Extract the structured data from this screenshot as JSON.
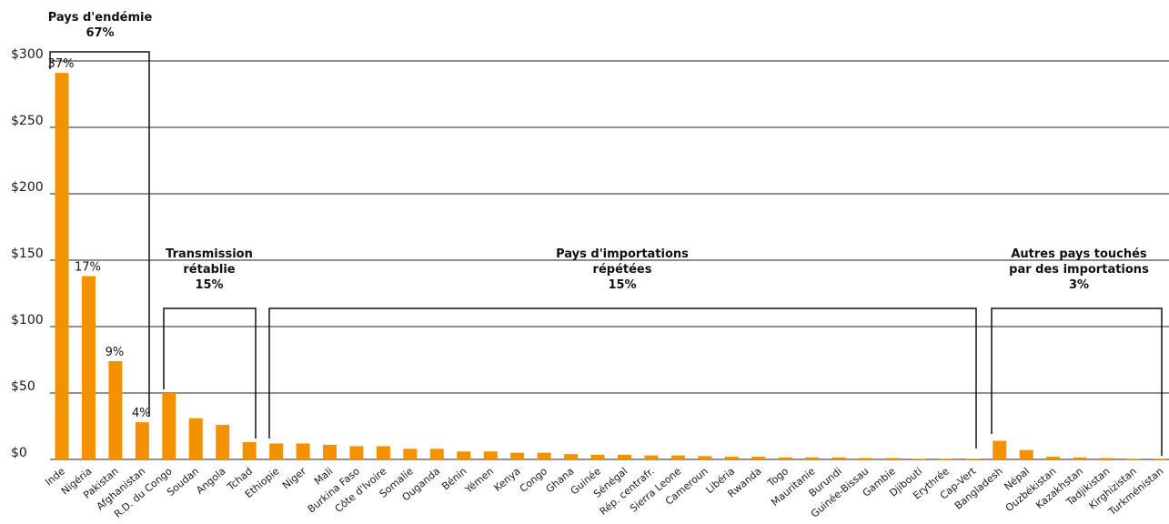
{
  "chart_data": {
    "type": "bar",
    "categories": [
      "Inde",
      "Nigéria",
      "Pakistan",
      "Afghanistan",
      "R.D. du Congo",
      "Soudan",
      "Angola",
      "Tchad",
      "Ethiopie",
      "Niger",
      "Mali",
      "Burkina Faso",
      "Côte d'Ivoire",
      "Somalie",
      "Ouganda",
      "Bénin",
      "Yémen",
      "Kenya",
      "Congo",
      "Ghana",
      "Guinée",
      "Sénégal",
      "Rép. centrafr.",
      "Sierra Leone",
      "Cameroun",
      "Libéria",
      "Rwanda",
      "Togo",
      "Mauritanie",
      "Burundi",
      "Guinée-Bissau",
      "Gambie",
      "Djibouti",
      "Erythrée",
      "Cap-Vert",
      "Bangladesh",
      "Népal",
      "Ouzbékistan",
      "Kazakhstan",
      "Tadjikistan",
      "Kirghizistan",
      "Turkménistan"
    ],
    "values": [
      291,
      138,
      74,
      28,
      50,
      31,
      26,
      13,
      12,
      12,
      11,
      10,
      10,
      8,
      8,
      6,
      6,
      5,
      5,
      4,
      3.5,
      3.5,
      3,
      3,
      2.5,
      2,
      2,
      1.5,
      1.5,
      1.5,
      1,
      1,
      0.5,
      0.5,
      0.5,
      14,
      7,
      2,
      1.5,
      1,
      0.5,
      0.5
    ],
    "ylim": [
      0,
      300
    ],
    "yticks": [
      0,
      50,
      100,
      150,
      200,
      250,
      300
    ],
    "ytick_labels": [
      "$0",
      "$50",
      "$100",
      "$150",
      "$200",
      "$250",
      "$300"
    ],
    "bar_color": "#f39200",
    "grid": true,
    "bar_labels": [
      {
        "index": 0,
        "text": "37%"
      },
      {
        "index": 1,
        "text": "17%"
      },
      {
        "index": 2,
        "text": "9%"
      },
      {
        "index": 3,
        "text": "4%"
      }
    ],
    "groups": [
      {
        "label_lines": [
          "Pays d'endémie",
          "67%"
        ],
        "first": 0,
        "last": 3
      },
      {
        "label_lines": [
          "Transmission",
          "rétablie",
          "15%"
        ],
        "first": 4,
        "last": 7
      },
      {
        "label_lines": [
          "Pays d'importations",
          "répétées",
          "15%"
        ],
        "first": 8,
        "last": 34
      },
      {
        "label_lines": [
          "Autres pays touchés",
          "par des importations",
          "3%"
        ],
        "first": 35,
        "last": 41
      }
    ]
  }
}
